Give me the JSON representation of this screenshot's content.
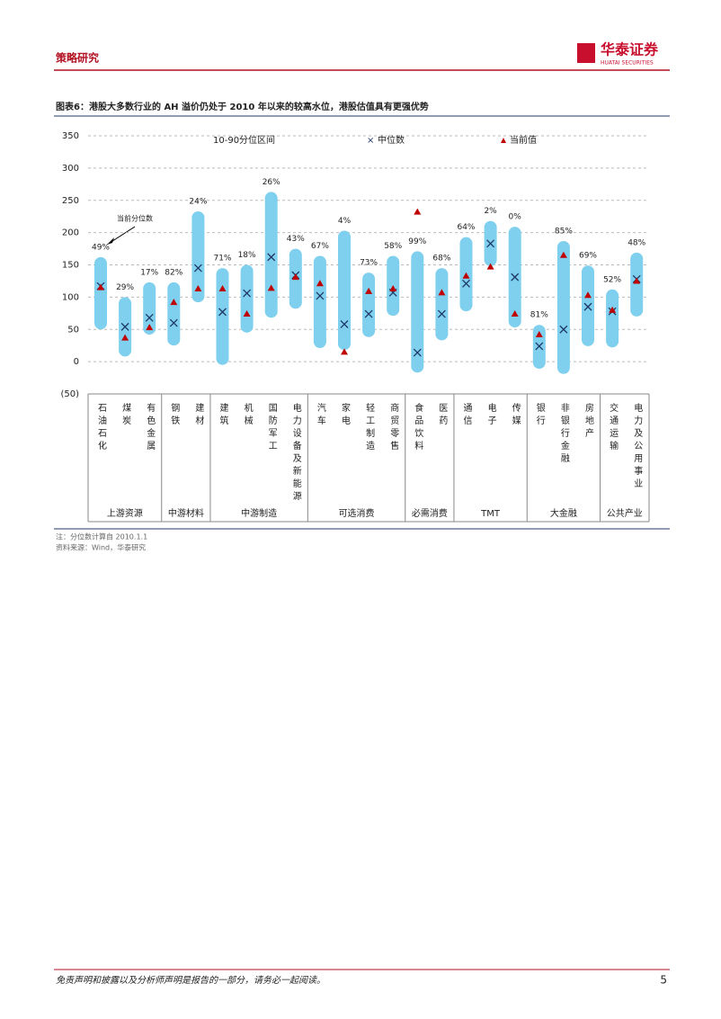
{
  "header": {
    "section": "策略研究",
    "brand": "华泰证券",
    "brand_en": "HUATAI SECURITIES"
  },
  "chart_data": {
    "type": "range",
    "title": "图表6：港股大多数行业的 AH 溢价仍处于 2010 年以来的较高水位，港股估值具有更强优势",
    "annotation": "当前分位数",
    "categories": [
      "石油石化",
      "煤炭",
      "有色金属",
      "钢铁",
      "建材",
      "建筑",
      "机械",
      "国防军工",
      "电力设备及新能源",
      "汽车",
      "家电",
      "轻工制造",
      "商贸零售",
      "食品饮料",
      "医药",
      "通信",
      "电子",
      "传媒",
      "银行",
      "非银行金融",
      "房地产",
      "交通运输",
      "电力及公用事业"
    ],
    "groups": [
      {
        "name": "上游资源",
        "count": 3
      },
      {
        "name": "中游材料",
        "count": 2
      },
      {
        "name": "中游制造",
        "count": 4
      },
      {
        "name": "可选消费",
        "count": 4
      },
      {
        "name": "必需消费",
        "count": 2
      },
      {
        "name": "TMT",
        "count": 3
      },
      {
        "name": "大金融",
        "count": 3
      },
      {
        "name": "公共产业",
        "count": 2
      }
    ],
    "series": [
      {
        "name": "10-90分位区间",
        "color": "#7fd0ee",
        "low": [
          50,
          8,
          42,
          25,
          92,
          -5,
          45,
          68,
          82,
          21,
          18,
          38,
          71,
          -17,
          33,
          78,
          148,
          53,
          -11,
          -19,
          24,
          22,
          70
        ],
        "high": [
          162,
          100,
          123,
          123,
          233,
          145,
          150,
          263,
          175,
          164,
          203,
          138,
          164,
          171,
          145,
          193,
          218,
          209,
          57,
          187,
          149,
          112,
          169
        ]
      },
      {
        "name": "中位数",
        "color": "#1f3864",
        "values": [
          117,
          54,
          68,
          60,
          145,
          77,
          106,
          162,
          134,
          102,
          58,
          74,
          107,
          14,
          74,
          121,
          183,
          131,
          24,
          50,
          85,
          78,
          128
        ]
      },
      {
        "name": "当前值",
        "color": "#c00000",
        "values": [
          115,
          37,
          53,
          92,
          113,
          113,
          74,
          114,
          131,
          121,
          15,
          109,
          113,
          232,
          107,
          133,
          147,
          74,
          42,
          165,
          103,
          80,
          125
        ]
      }
    ],
    "percentiles": [
      49,
      29,
      17,
      82,
      24,
      71,
      18,
      26,
      43,
      67,
      4,
      73,
      58,
      99,
      68,
      64,
      2,
      0,
      81,
      85,
      69,
      52,
      48
    ],
    "percentile_labels": [
      "49%",
      "29%",
      "17%",
      "82%",
      "24%",
      "71%",
      "18%",
      "26%",
      "43%",
      "67%",
      "4%",
      "73%",
      "58%",
      "99%",
      "68%",
      "64%",
      "2%",
      "0%",
      "81%",
      "85%",
      "69%",
      "52%",
      "48%"
    ],
    "ylim": [
      -50,
      350
    ],
    "yticks": [
      {
        "value": -50,
        "label": "(50)"
      },
      0,
      50,
      100,
      150,
      200,
      250,
      300,
      350
    ],
    "grid": true
  },
  "notes": [
    "注：分位数计算自 2010.1.1",
    "资料来源：Wind，华泰研究"
  ],
  "footer": {
    "disclaimer": "免责声明和披露以及分析师声明是报告的一部分，请务必一起阅读。",
    "page": "5"
  }
}
